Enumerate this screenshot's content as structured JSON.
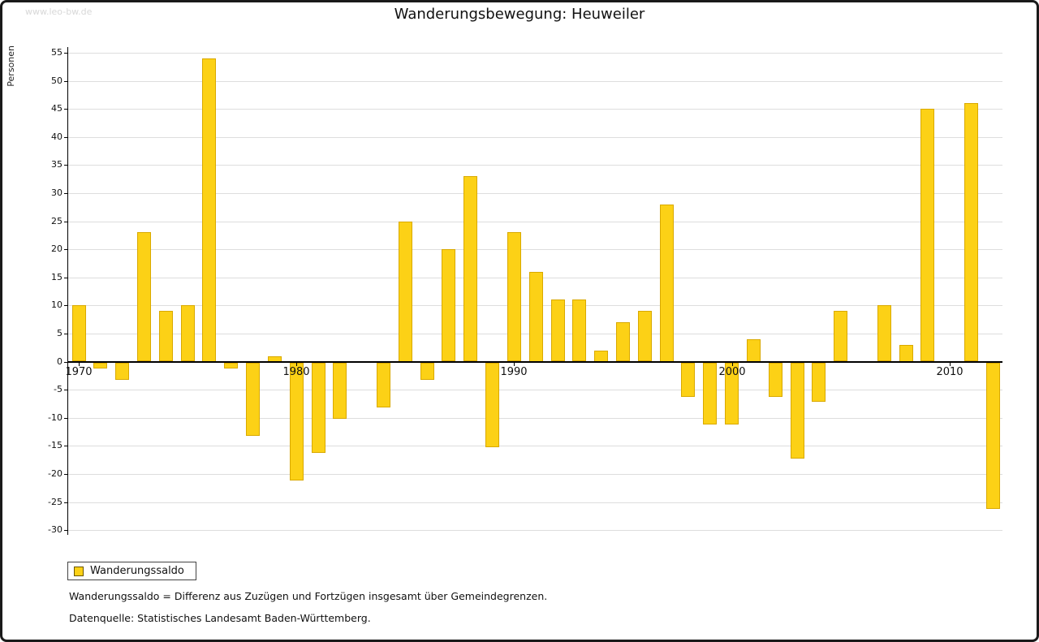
{
  "watermark": "www.leo-bw.de",
  "legend": {
    "label": "Wanderungssaldo"
  },
  "footnotes": [
    "Wanderungssaldo = Differenz aus Zuzügen und Fortzügen insgesamt über Gemeindegrenzen.",
    "Datenquelle: Statistisches Landesamt Baden-Württemberg."
  ],
  "colors": {
    "bar_fill": "#fcd116",
    "bar_border": "#d9a900",
    "grid": "#dddddd",
    "axis": "#000000",
    "watermark": "#d8d8d8"
  },
  "chart_data": {
    "type": "bar",
    "title": "Wanderungsbewegung: Heuweiler",
    "ylabel": "Personen",
    "xlabel": "",
    "ylim": [
      -30,
      55
    ],
    "ytick_step": 5,
    "xticks": [
      1970,
      1980,
      1990,
      2000,
      2010
    ],
    "grid": true,
    "legend_position": "bottom-left",
    "series_name": "Wanderungssaldo",
    "years": [
      1970,
      1971,
      1972,
      1973,
      1974,
      1975,
      1976,
      1977,
      1978,
      1979,
      1980,
      1981,
      1982,
      1983,
      1984,
      1985,
      1986,
      1987,
      1988,
      1989,
      1990,
      1991,
      1992,
      1993,
      1994,
      1995,
      1996,
      1997,
      1998,
      1999,
      2000,
      2001,
      2002,
      2003,
      2004,
      2005,
      2006,
      2007,
      2008,
      2009,
      2010,
      2011,
      2012
    ],
    "values": [
      10,
      -1,
      -3,
      23,
      9,
      10,
      54,
      -1,
      -13,
      1,
      -21,
      -16,
      -10,
      0,
      -8,
      25,
      -3,
      20,
      33,
      -15,
      23,
      16,
      11,
      11,
      2,
      7,
      9,
      28,
      -6,
      -11,
      -11,
      4,
      -6,
      -17,
      -7,
      9,
      0,
      10,
      3,
      45,
      0,
      46,
      -26
    ]
  }
}
